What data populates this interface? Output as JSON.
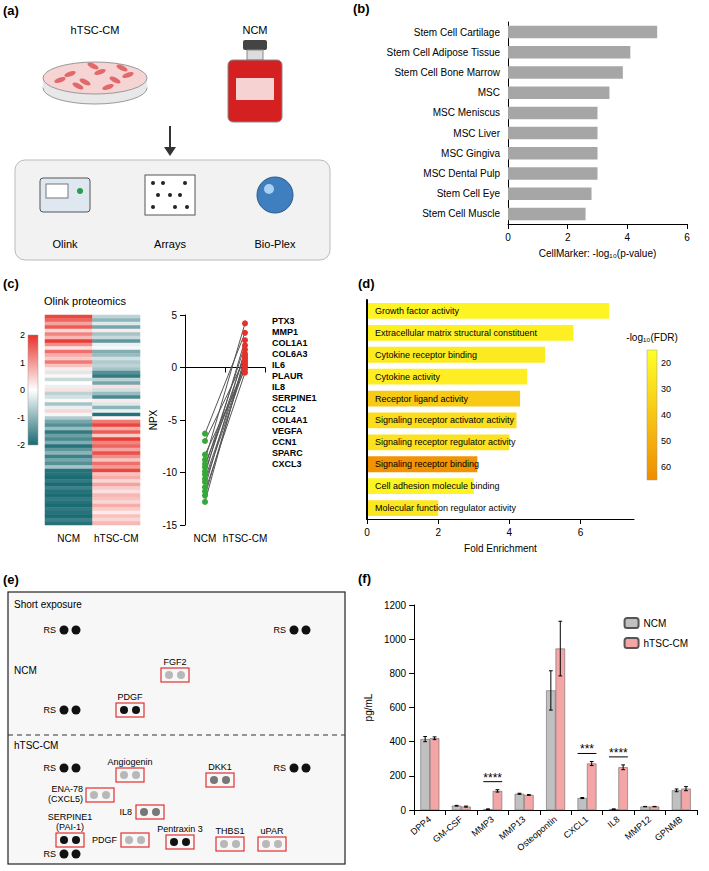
{
  "diagram": {
    "panel": "(a)",
    "sources": [
      "hTSC-CM",
      "NCM"
    ],
    "methods": [
      "Olink",
      "Arrays",
      "Bio-Plex"
    ]
  },
  "chart_data": [
    {
      "panel": "(b)",
      "type": "bar",
      "orientation": "horizontal",
      "categories": [
        "Stem Cell Cartilage",
        "Stem Cell Adipose Tissue",
        "Stem Cell Bone Marrow",
        "MSC",
        "MSC Meniscus",
        "MSC Liver",
        "MSC Gingiva",
        "MSC Dental Pulp",
        "Stem Cell Eye",
        "Stem Cell Muscle"
      ],
      "values": [
        5.0,
        4.1,
        3.85,
        3.4,
        3.0,
        3.0,
        3.0,
        3.0,
        2.8,
        2.6
      ],
      "color": "#a6a6a6",
      "xlabel": "CellMarker: -log₁₀(p-value)",
      "xlim": [
        0,
        6
      ],
      "xticks": [
        0,
        2,
        4,
        6
      ],
      "grid": false
    },
    {
      "panel": "(c)",
      "type": "heatmap",
      "title": "Olink proteomics",
      "categories": [
        "NCM",
        "hTSC-CM"
      ],
      "cells": [
        [
          1.8,
          -0.6
        ],
        [
          1.5,
          -1.0
        ],
        [
          0.9,
          -0.3
        ],
        [
          1.6,
          -1.2
        ],
        [
          0.4,
          0.2
        ],
        [
          1.2,
          -0.8
        ],
        [
          0.7,
          -0.5
        ],
        [
          1.9,
          -1.4
        ],
        [
          1.1,
          -0.2
        ],
        [
          0.3,
          -0.1
        ],
        [
          1.4,
          -1.1
        ],
        [
          0.8,
          -0.9
        ],
        [
          0.5,
          -0.4
        ],
        [
          1.3,
          -0.7
        ],
        [
          0.6,
          -0.6
        ],
        [
          0.2,
          -0.8
        ],
        [
          -0.3,
          -1.5
        ],
        [
          0.1,
          -1.8
        ],
        [
          -0.5,
          -0.6
        ],
        [
          0.0,
          -1.2
        ],
        [
          -0.2,
          0.3
        ],
        [
          0.3,
          -0.4
        ],
        [
          -0.6,
          -0.9
        ],
        [
          -0.4,
          -1.6
        ],
        [
          0.1,
          0.2
        ],
        [
          -0.8,
          -0.3
        ],
        [
          -0.2,
          -1.0
        ],
        [
          0.4,
          -0.2
        ],
        [
          -0.1,
          -1.9
        ],
        [
          -0.7,
          0.1
        ],
        [
          -1.2,
          1.3
        ],
        [
          -1.5,
          1.8
        ],
        [
          -0.9,
          0.8
        ],
        [
          -1.8,
          1.6
        ],
        [
          -1.3,
          0.5
        ],
        [
          -1.6,
          1.9
        ],
        [
          -1.1,
          1.2
        ],
        [
          -1.9,
          1.5
        ],
        [
          -1.4,
          0.9
        ],
        [
          -1.0,
          1.7
        ],
        [
          -1.7,
          1.1
        ],
        [
          -1.2,
          0.6
        ],
        [
          -1.5,
          1.4
        ],
        [
          -0.8,
          1.0
        ],
        [
          -1.9,
          1.8
        ],
        [
          -1.9,
          0.6
        ],
        [
          -2.0,
          0.8
        ],
        [
          -1.8,
          0.4
        ],
        [
          -2.0,
          0.9
        ],
        [
          -1.7,
          0.5
        ],
        [
          -1.9,
          0.3
        ],
        [
          -2.0,
          0.7
        ],
        [
          -1.8,
          0.6
        ],
        [
          -1.9,
          0.4
        ],
        [
          -2.0,
          0.8
        ],
        [
          -1.8,
          0.5
        ],
        [
          -1.9,
          0.2
        ],
        [
          -2.0,
          0.6
        ],
        [
          -1.7,
          0.4
        ],
        [
          -1.9,
          0.7
        ]
      ],
      "color_lim": [
        -2,
        2
      ],
      "color_ticks": [
        -2,
        -1,
        0,
        1,
        2
      ],
      "tick_labels": "x"
    },
    {
      "type": "line",
      "categories": [
        "NCM",
        "hTSC-CM"
      ],
      "ylabel": "NPX",
      "ylim": [
        -15,
        5
      ],
      "yticks": [
        -15,
        -10,
        -5,
        0,
        5
      ],
      "color": "#555555",
      "colors": [
        "#35a835",
        "#e4322b"
      ],
      "marker": "circle",
      "grid": false,
      "series": [
        {
          "name": "PTX3",
          "values": [
            -8.8,
            4.2
          ]
        },
        {
          "name": "MMP1",
          "values": [
            -6.3,
            3.3
          ]
        },
        {
          "name": "COL1A1",
          "values": [
            -10.2,
            2.6
          ]
        },
        {
          "name": "COL6A3",
          "values": [
            -9.5,
            2.1
          ]
        },
        {
          "name": "IL6",
          "values": [
            -11.4,
            1.7
          ]
        },
        {
          "name": "PLAUR",
          "values": [
            -9.9,
            1.3
          ]
        },
        {
          "name": "IL8",
          "values": [
            -12.8,
            1.1
          ]
        },
        {
          "name": "SERPINE1",
          "values": [
            -7.0,
            0.9
          ]
        },
        {
          "name": "CCL2",
          "values": [
            -12.2,
            0.7
          ]
        },
        {
          "name": "COL4A1",
          "values": [
            -10.6,
            0.5
          ]
        },
        {
          "name": "VEGFA",
          "values": [
            -9.2,
            0.3
          ]
        },
        {
          "name": "CCN1",
          "values": [
            -10.9,
            0.1
          ]
        },
        {
          "name": "SPARC",
          "values": [
            -8.3,
            -0.2
          ]
        },
        {
          "name": "CXCL3",
          "values": [
            -11.8,
            -0.5
          ]
        }
      ]
    },
    {
      "panel": "(d)",
      "type": "bar",
      "orientation": "horizontal",
      "categories": [
        "Growth factor activity",
        "Extracellular matrix structural constituent",
        "Cytokine receptor binding",
        "Cytokine activity",
        "Receptor ligand activity",
        "Signaling receptor activator activity",
        "Signaling receptor regulator activity",
        "Signaling receptor binding",
        "Cell adhesion molecule binding",
        "Molecular function regulator activity"
      ],
      "values": [
        6.8,
        5.8,
        5.0,
        4.5,
        4.3,
        4.2,
        4.0,
        3.1,
        3.0,
        2.0
      ],
      "fdr": [
        20,
        22,
        24,
        23,
        38,
        30,
        28,
        62,
        20,
        26
      ],
      "color_label": "-log₁₀(FDR)",
      "color_lim": [
        15,
        65
      ],
      "color_ticks": [
        20,
        30,
        40,
        50,
        60
      ],
      "xlabel": "Fold Enrichment",
      "xlim": [
        0,
        7.5
      ],
      "xticks": [
        0,
        2,
        4,
        6
      ],
      "grid": false
    },
    {
      "panel": "(f)",
      "type": "bar",
      "categories": [
        "DPP4",
        "GM-CSF",
        "MMP3",
        "MMP13",
        "Osteopontin",
        "CXCL1",
        "IL8",
        "MMP12",
        "GPNMB"
      ],
      "series": [
        {
          "name": "NCM",
          "color": "#c0c0c0",
          "values": [
            415,
            25,
            5,
            95,
            700,
            70,
            5,
            20,
            115
          ],
          "errors": [
            15,
            2,
            1,
            3,
            115,
            3,
            1,
            1,
            8
          ]
        },
        {
          "name": "hTSC-CM",
          "color": "#f4a6a6",
          "values": [
            420,
            20,
            112,
            88,
            945,
            272,
            250,
            20,
            125
          ],
          "errors": [
            8,
            3,
            7,
            2,
            160,
            12,
            14,
            1,
            12
          ]
        }
      ],
      "ylabel": "pg/mL",
      "ylim": [
        0,
        1200
      ],
      "yticks": [
        0,
        200,
        400,
        600,
        800,
        1000,
        1200
      ],
      "legend": "upper right",
      "grid": false,
      "annotations": [
        {
          "category": "MMP3",
          "text": "****"
        },
        {
          "category": "CXCL1",
          "text": "***"
        },
        {
          "category": "IL8",
          "text": "****"
        }
      ]
    }
  ],
  "array": {
    "panel": "(e)",
    "title": "Short exposure",
    "sections": [
      {
        "label": "NCM",
        "spots": [
          "RS",
          "RS",
          "RS",
          "FGF2",
          "PDGF"
        ]
      },
      {
        "label": "hTSC-CM",
        "spots": [
          "RS",
          "RS",
          "ENA-78 (CXCL5)",
          "Angiogenin",
          "DKK1",
          "IL8",
          "SERPINE1 (PAI-1)",
          "PDGF",
          "Pentraxin 3",
          "THBS1",
          "uPAR",
          "RS"
        ]
      }
    ]
  }
}
